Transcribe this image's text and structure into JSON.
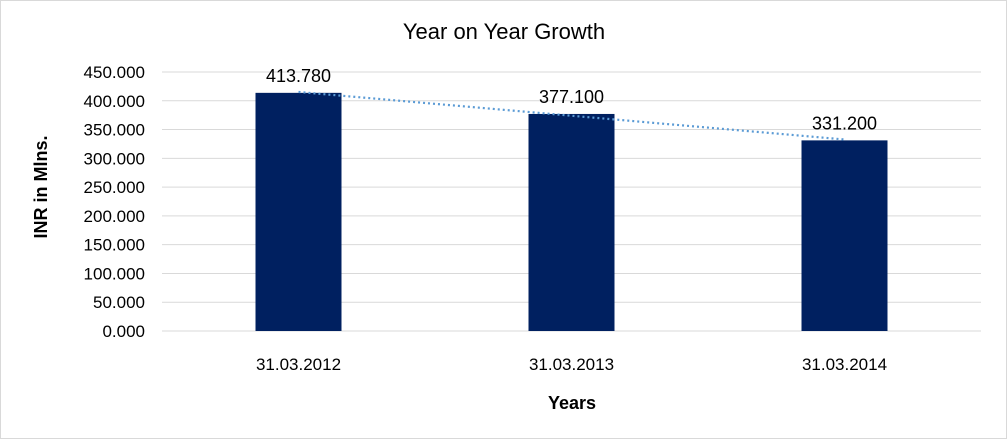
{
  "chart_data": {
    "type": "bar",
    "title": "Year on Year Growth",
    "xlabel": "Years",
    "ylabel": "INR in Mlns.",
    "categories": [
      "31.03.2012",
      "31.03.2013",
      "31.03.2014"
    ],
    "values": [
      413.78,
      377.1,
      331.2
    ],
    "data_labels": [
      "413.780",
      "377.100",
      "331.200"
    ],
    "ylim": [
      0,
      450
    ],
    "y_ticks": [
      0,
      50,
      100,
      150,
      200,
      250,
      300,
      350,
      400,
      450
    ],
    "y_tick_labels": [
      "0.000",
      "50.000",
      "100.000",
      "150.000",
      "200.000",
      "250.000",
      "300.000",
      "350.000",
      "400.000",
      "450.000"
    ],
    "grid": true,
    "trendline": "linear",
    "colors": {
      "bar": "#002060",
      "trendline": "#5b9bd5",
      "grid": "#d9d9d9"
    }
  }
}
